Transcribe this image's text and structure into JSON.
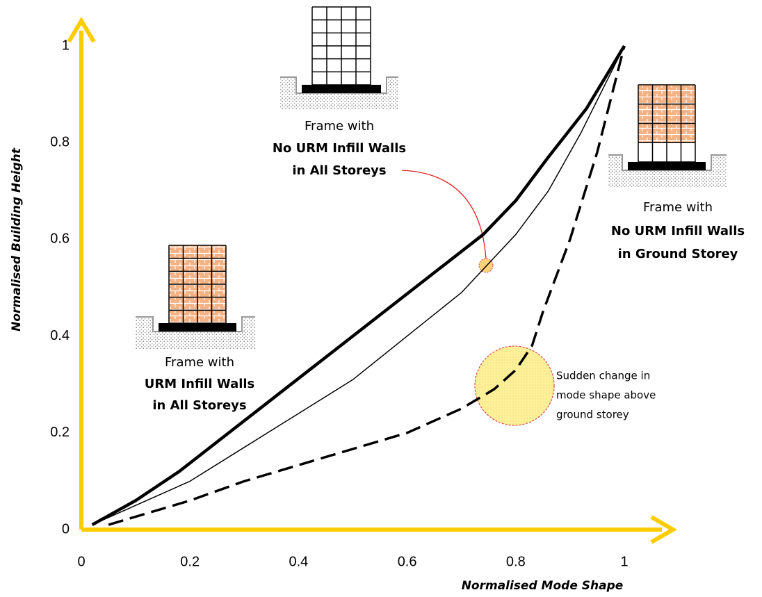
{
  "chart_data": {
    "type": "line",
    "x_label": "Normalised Mode Shape",
    "y_label": "Normalised Building Height",
    "xlim": [
      0,
      1
    ],
    "ylim": [
      0,
      1
    ],
    "xticks": [
      0,
      0.2,
      0.4,
      0.6,
      0.8,
      1
    ],
    "yticks": [
      0,
      0.2,
      0.4,
      0.6,
      0.8,
      1
    ],
    "axis_color": "#ffcc00",
    "series": [
      {
        "color": "#000000",
        "line_style": "thick",
        "x": [
          0.02,
          0.1,
          0.18,
          0.26,
          0.34,
          0.42,
          0.5,
          0.58,
          0.66,
          0.74,
          0.8,
          0.86,
          0.93,
          1
        ],
        "values": [
          0.01,
          0.06,
          0.12,
          0.19,
          0.26,
          0.33,
          0.4,
          0.47,
          0.54,
          0.61,
          0.68,
          0.77,
          0.87,
          1
        ]
      },
      {
        "color": "#000000",
        "line_style": "thin",
        "x": [
          0.02,
          0.1,
          0.2,
          0.3,
          0.4,
          0.5,
          0.6,
          0.7,
          0.75,
          0.8,
          0.86,
          0.92,
          1
        ],
        "values": [
          0.01,
          0.05,
          0.1,
          0.17,
          0.24,
          0.31,
          0.4,
          0.49,
          0.55,
          0.61,
          0.7,
          0.82,
          1
        ]
      },
      {
        "color": "#000000",
        "line_style": "dashed",
        "x": [
          0.05,
          0.2,
          0.3,
          0.45,
          0.6,
          0.7,
          0.76,
          0.8,
          0.83,
          0.85,
          0.9,
          0.95,
          1
        ],
        "values": [
          0.01,
          0.06,
          0.1,
          0.15,
          0.2,
          0.25,
          0.29,
          0.33,
          0.38,
          0.45,
          0.6,
          0.78,
          1
        ]
      }
    ],
    "annotations": [
      {
        "lines": [
          "Frame with",
          "No URM Infill Walls",
          "in All Storeys"
        ]
      },
      {
        "lines": [
          "Frame with",
          "URM Infill Walls",
          "in All Storeys"
        ]
      },
      {
        "lines": [
          "Frame with",
          "No URM Infill Walls",
          "in Ground Storey"
        ]
      },
      {
        "lines": [
          "Sudden change in",
          "mode shape above",
          "ground storey"
        ]
      }
    ]
  }
}
